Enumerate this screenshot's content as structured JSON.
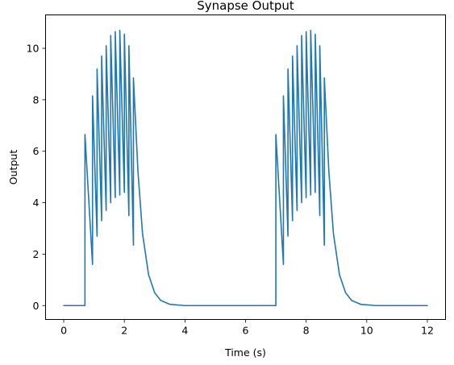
{
  "chart_data": {
    "type": "line",
    "title": "Synapse Output",
    "xlabel": "Time (s)",
    "ylabel": "Output",
    "xlim": [
      -0.6,
      12.6
    ],
    "ylim": [
      -0.54,
      11.3
    ],
    "xticks": [
      0,
      2,
      4,
      6,
      8,
      10,
      12
    ],
    "yticks": [
      0,
      2,
      4,
      6,
      8,
      10
    ],
    "grid": false,
    "legend": "none",
    "series": [
      {
        "color": "#1f77b4",
        "points": [
          [
            0.0,
            0.0
          ],
          [
            0.7,
            0.0
          ],
          [
            0.7,
            6.65
          ],
          [
            0.95,
            1.6
          ],
          [
            0.95,
            8.15
          ],
          [
            1.1,
            2.7
          ],
          [
            1.1,
            9.2
          ],
          [
            1.25,
            3.3
          ],
          [
            1.25,
            9.7
          ],
          [
            1.4,
            3.7
          ],
          [
            1.4,
            10.1
          ],
          [
            1.55,
            4.0
          ],
          [
            1.55,
            10.5
          ],
          [
            1.7,
            4.2
          ],
          [
            1.7,
            10.65
          ],
          [
            1.85,
            4.3
          ],
          [
            1.85,
            10.7
          ],
          [
            2.0,
            4.4
          ],
          [
            2.0,
            10.55
          ],
          [
            2.15,
            3.5
          ],
          [
            2.15,
            10.1
          ],
          [
            2.3,
            2.35
          ],
          [
            2.3,
            8.85
          ],
          [
            2.45,
            5.2
          ],
          [
            2.6,
            2.8
          ],
          [
            2.8,
            1.2
          ],
          [
            3.0,
            0.5
          ],
          [
            3.2,
            0.2
          ],
          [
            3.5,
            0.05
          ],
          [
            4.0,
            0.0
          ],
          [
            7.0,
            0.0
          ],
          [
            7.0,
            6.65
          ],
          [
            7.25,
            1.6
          ],
          [
            7.25,
            8.15
          ],
          [
            7.4,
            2.7
          ],
          [
            7.4,
            9.2
          ],
          [
            7.55,
            3.3
          ],
          [
            7.55,
            9.7
          ],
          [
            7.7,
            3.7
          ],
          [
            7.7,
            10.1
          ],
          [
            7.85,
            4.0
          ],
          [
            7.85,
            10.5
          ],
          [
            8.0,
            4.2
          ],
          [
            8.0,
            10.65
          ],
          [
            8.15,
            4.3
          ],
          [
            8.15,
            10.7
          ],
          [
            8.3,
            4.4
          ],
          [
            8.3,
            10.55
          ],
          [
            8.45,
            3.5
          ],
          [
            8.45,
            10.1
          ],
          [
            8.6,
            2.35
          ],
          [
            8.6,
            8.85
          ],
          [
            8.75,
            5.2
          ],
          [
            8.9,
            2.8
          ],
          [
            9.1,
            1.2
          ],
          [
            9.3,
            0.5
          ],
          [
            9.5,
            0.2
          ],
          [
            9.8,
            0.05
          ],
          [
            10.3,
            0.0
          ],
          [
            12.0,
            0.0
          ]
        ]
      }
    ]
  }
}
